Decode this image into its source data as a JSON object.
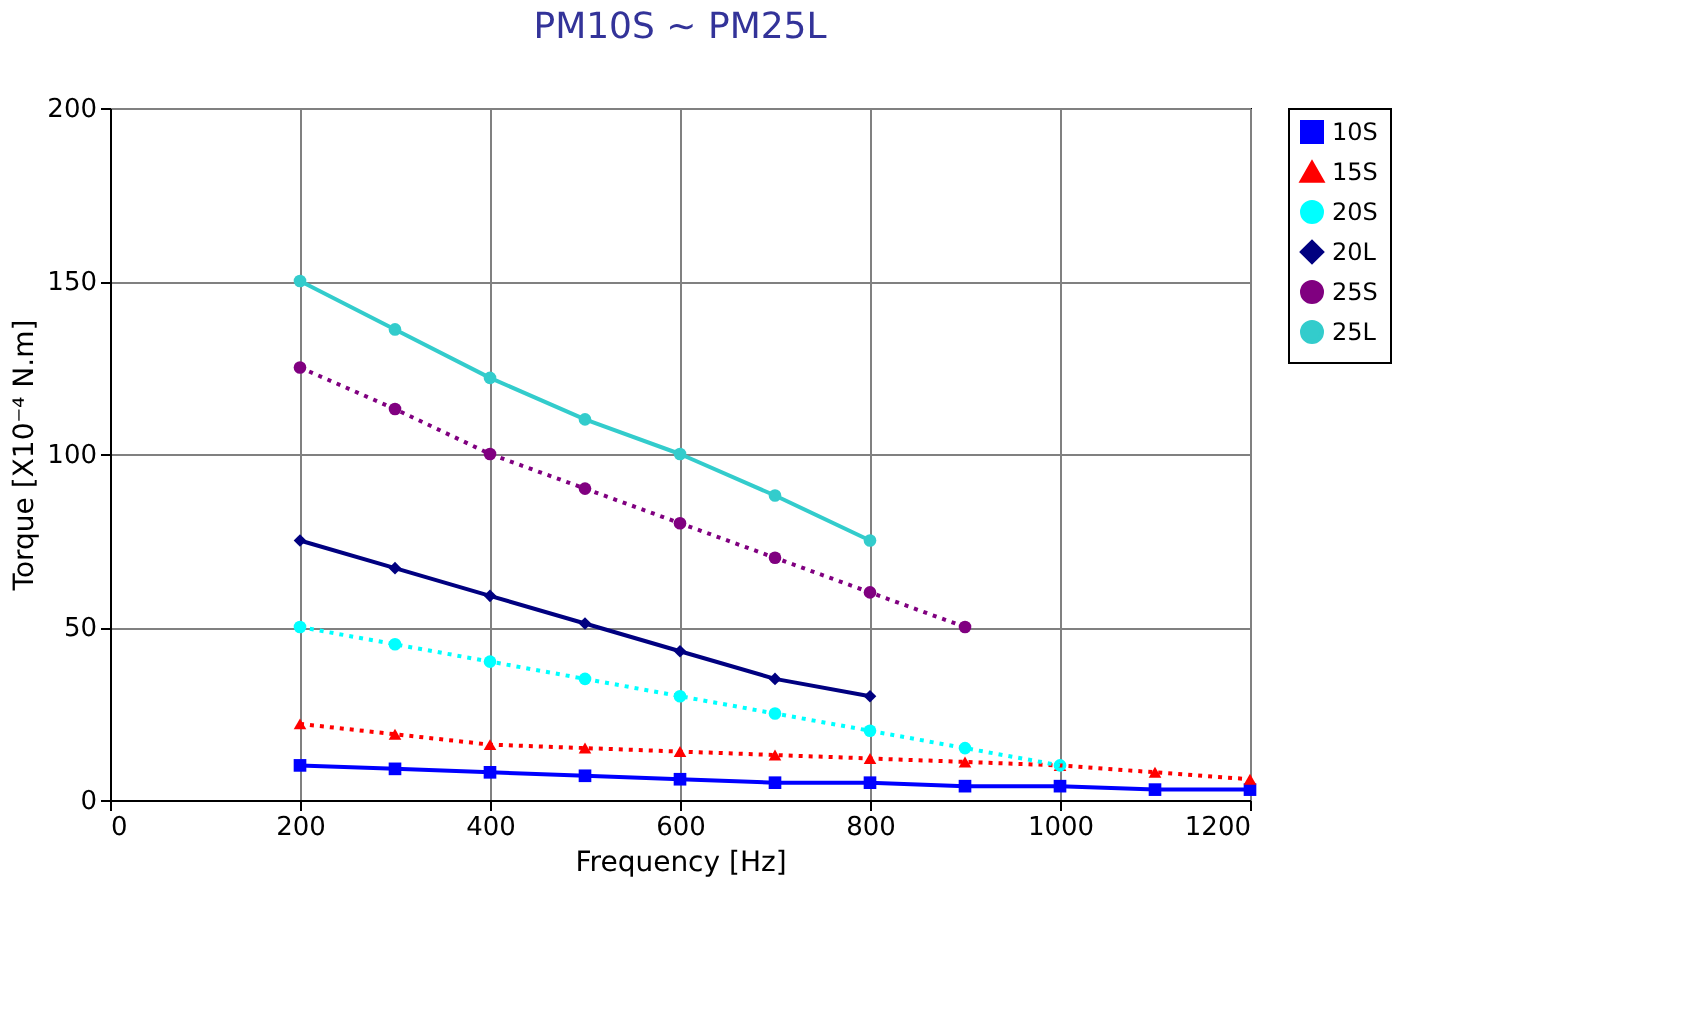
{
  "chart_data": {
    "type": "line",
    "title": "PM10S ~ PM25L",
    "xlabel": "Frequency [Hz]",
    "ylabel": "Torque [X10⁻⁴ N.m]",
    "x": [
      200,
      300,
      400,
      500,
      600,
      700,
      800,
      900,
      1000,
      1100,
      1200
    ],
    "series": [
      {
        "name": "10S",
        "color": "#0000ff",
        "marker": "square",
        "line_style": "solid",
        "values": [
          10,
          9,
          8,
          7,
          6,
          5,
          5,
          4,
          4,
          3,
          3
        ]
      },
      {
        "name": "15S",
        "color": "#ff0000",
        "marker": "triangle",
        "line_style": "dotted",
        "values": [
          22,
          19,
          16,
          15,
          14,
          13,
          12,
          11,
          10,
          8,
          6
        ]
      },
      {
        "name": "20S",
        "color": "#00ffff",
        "marker": "circle",
        "line_style": "dotted",
        "values": [
          50,
          45,
          40,
          35,
          30,
          25,
          20,
          15,
          10,
          null,
          null
        ]
      },
      {
        "name": "20L",
        "color": "#000080",
        "marker": "diamond",
        "line_style": "solid",
        "values": [
          75,
          67,
          59,
          51,
          43,
          35,
          30,
          null,
          null,
          null,
          null
        ]
      },
      {
        "name": "25S",
        "color": "#800080",
        "marker": "circle",
        "line_style": "dotted",
        "values": [
          125,
          113,
          100,
          90,
          80,
          70,
          60,
          50,
          null,
          null,
          null
        ]
      },
      {
        "name": "25L",
        "color": "#33cccc",
        "marker": "circle",
        "line_style": "solid",
        "values": [
          150,
          136,
          122,
          110,
          100,
          88,
          75,
          null,
          null,
          null,
          null
        ]
      }
    ],
    "xlim": [
      0,
      1200
    ],
    "xticks": [
      0,
      200,
      400,
      600,
      800,
      1000,
      1200
    ],
    "ylim": [
      0,
      200
    ],
    "yticks": [
      0,
      50,
      100,
      150,
      200
    ],
    "grid": true,
    "legend": "right"
  }
}
